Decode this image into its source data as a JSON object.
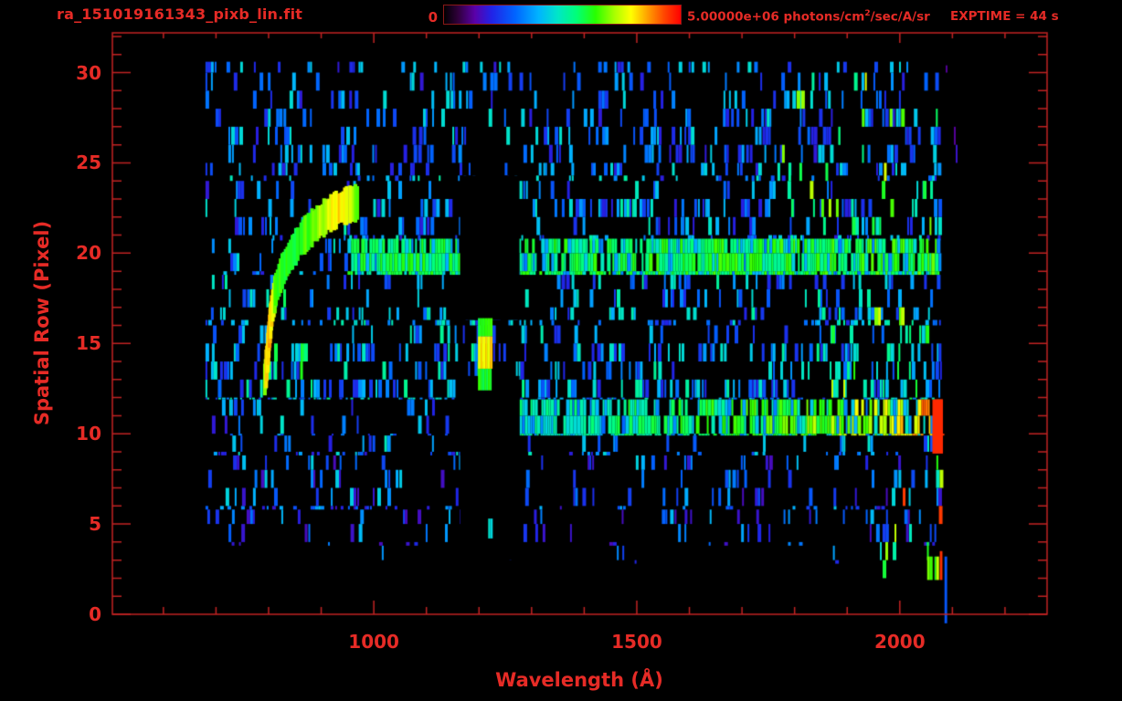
{
  "header": {
    "title": "ra_151019161343_pixb_lin.fit",
    "colorbar": {
      "min_label": "0",
      "max_label_prefix": "5.00000e+06 photons/cm",
      "max_label_sup": "2",
      "max_label_suffix": "/sec/A/sr",
      "units": "photons/cm2/sec/A/sr",
      "range": [
        0,
        5000000
      ]
    },
    "exptime_label": "EXPTIME = 44 s"
  },
  "chart_data": {
    "type": "heatmap",
    "title": "ra_151019161343_pixb_lin.fit",
    "xlabel": "Wavelength (Å)",
    "ylabel": "Spatial Row (Pixel)",
    "xlim": [
      503,
      2280
    ],
    "ylim": [
      0,
      32.2
    ],
    "x_major_ticks": [
      1000,
      1500,
      2000
    ],
    "x_minor_min": 600,
    "x_minor_max": 2200,
    "x_minor_step": 100,
    "y_major_ticks": [
      0,
      5,
      10,
      15,
      20,
      25,
      30
    ],
    "y_minor_max": 32,
    "y_minor_step": 1,
    "colorbar_range": [
      0,
      5000000
    ],
    "exptime_s": 44,
    "axis_color": "#c22323",
    "text_color": "#e62b26",
    "background_color": "#000000",
    "seed": 20151019,
    "colormap": [
      [
        0.0,
        "#000000"
      ],
      [
        0.06,
        "#30003c"
      ],
      [
        0.13,
        "#5a00a8"
      ],
      [
        0.2,
        "#2222e6"
      ],
      [
        0.3,
        "#0064ff"
      ],
      [
        0.4,
        "#00b4ff"
      ],
      [
        0.48,
        "#00e6c8"
      ],
      [
        0.56,
        "#00ff78"
      ],
      [
        0.64,
        "#28ff00"
      ],
      [
        0.72,
        "#a8ff00"
      ],
      [
        0.79,
        "#ffff00"
      ],
      [
        0.86,
        "#ffa000"
      ],
      [
        0.93,
        "#ff4600"
      ],
      [
        1.0,
        "#ff0000"
      ]
    ],
    "data_wavelength_extent": [
      680,
      2080
    ],
    "data_row_extent": [
      0,
      30.6
    ],
    "features": {
      "noise_regions": [
        {
          "rows": [
            24.3,
            30.6
          ],
          "wl": [
            680,
            2078
          ],
          "density": 0.3,
          "v": [
            0.18,
            0.48
          ]
        },
        {
          "rows": [
            20.7,
            24.3
          ],
          "wl": [
            680,
            2078
          ],
          "density": 0.34,
          "v": [
            0.18,
            0.52
          ]
        },
        {
          "rows": [
            18.8,
            20.8
          ],
          "wl": [
            680,
            950
          ],
          "density": 0.3,
          "v": [
            0.18,
            0.5
          ]
        },
        {
          "rows": [
            16.3,
            18.8
          ],
          "wl": [
            680,
            2078
          ],
          "density": 0.38,
          "v": [
            0.2,
            0.53
          ]
        },
        {
          "rows": [
            11.9,
            16.3
          ],
          "wl": [
            680,
            2078
          ],
          "density": 0.42,
          "v": [
            0.2,
            0.55
          ]
        },
        {
          "rows": [
            9.9,
            11.9
          ],
          "wl": [
            680,
            1277
          ],
          "density": 0.34,
          "v": [
            0.18,
            0.5
          ]
        },
        {
          "rows": [
            8.8,
            9.9
          ],
          "wl": [
            680,
            2078
          ],
          "density": 0.32,
          "v": [
            0.18,
            0.5
          ]
        },
        {
          "rows": [
            5.8,
            8.8
          ],
          "wl": [
            680,
            2078
          ],
          "density": 0.26,
          "v": [
            0.15,
            0.45
          ]
        },
        {
          "rows": [
            3.8,
            5.8
          ],
          "wl": [
            680,
            2078
          ],
          "density": 0.14,
          "v": [
            0.15,
            0.42
          ]
        },
        {
          "rows": [
            2.8,
            3.8
          ],
          "wl": [
            900,
            1900
          ],
          "density": 0.04,
          "v": [
            0.2,
            0.4
          ]
        },
        {
          "rows": [
            13.0,
            18.0
          ],
          "wl": [
            800,
            868
          ],
          "density": 0.28,
          "v": [
            0.45,
            0.65
          ]
        },
        {
          "rows": [
            2.0,
            8.8
          ],
          "wl": [
            1950,
            2078
          ],
          "density": 0.18,
          "v": [
            0.45,
            0.8
          ],
          "red_chance": 0.05
        },
        {
          "rows": [
            11.9,
            17.0
          ],
          "wl": [
            1870,
            2078
          ],
          "density": 0.15,
          "v": [
            0.45,
            0.8
          ],
          "red_chance": 0.04
        },
        {
          "rows": [
            20.7,
            30.6
          ],
          "wl": [
            1750,
            2078
          ],
          "density": 0.13,
          "v": [
            0.45,
            0.8
          ],
          "red_chance": 0.04
        },
        {
          "rows": [
            24.0,
            30.4
          ],
          "wl": [
            2082,
            2108
          ],
          "density": 0.07,
          "v": [
            0.1,
            0.18
          ]
        },
        {
          "rows": [
            0.0,
            3.0
          ],
          "wl": [
            2082,
            2100
          ],
          "density": 0.06,
          "v": [
            0.1,
            0.18
          ]
        }
      ],
      "spectra_bands": [
        {
          "name": "upper-spectrum-row-19-20",
          "rows": [
            18.8,
            20.8
          ],
          "wl": [
            950,
            2078
          ],
          "density": 0.85,
          "low_mix": 0.25,
          "low_v": [
            0.32,
            0.5
          ],
          "ramp": [
            [
              950,
              0.5,
              0.64
            ],
            [
              1500,
              0.52,
              0.66
            ],
            [
              2000,
              0.52,
              0.68
            ],
            [
              2078,
              0.55,
              0.7
            ]
          ]
        },
        {
          "name": "lower-spectrum-row-10-11",
          "rows": [
            9.9,
            11.9
          ],
          "wl": [
            1277,
            2078
          ],
          "density": 0.82,
          "low_mix": 0.28,
          "low_v": [
            0.3,
            0.5
          ],
          "ramp": [
            [
              1277,
              0.42,
              0.58
            ],
            [
              1500,
              0.48,
              0.62
            ],
            [
              1760,
              0.55,
              0.7
            ],
            [
              1900,
              0.62,
              0.78
            ],
            [
              2010,
              0.72,
              0.86
            ],
            [
              2060,
              0.8,
              0.95
            ],
            [
              2078,
              0.88,
              1.0
            ]
          ]
        }
      ],
      "absorption_gaps": [
        {
          "name": "lyman-alpha-gap-upper",
          "rows": [
            16.3,
            24.3
          ],
          "wl": [
            1164,
            1277
          ]
        },
        {
          "name": "lyman-alpha-gap-lower",
          "rows": [
            3.0,
            13.2
          ],
          "wl": [
            1164,
            1277
          ]
        }
      ],
      "lyman_alpha_line": {
        "wl": [
          1198,
          1224
        ],
        "segments": [
          [
            12.4,
            13.6,
            0.6
          ],
          [
            13.6,
            15.4,
            0.8
          ],
          [
            15.4,
            16.4,
            0.62
          ]
        ]
      },
      "arc": {
        "thickness_rows": 1.9,
        "strip_w": 4,
        "points": [
          [
            793,
            13.0,
            0.72
          ],
          [
            798,
            14.2,
            0.82
          ],
          [
            801,
            15.4,
            0.86
          ],
          [
            806,
            16.8,
            0.8
          ],
          [
            814,
            18.0,
            0.68
          ],
          [
            826,
            19.0,
            0.62
          ],
          [
            842,
            19.9,
            0.6
          ],
          [
            862,
            20.8,
            0.64
          ],
          [
            886,
            21.5,
            0.68
          ],
          [
            912,
            22.1,
            0.74
          ],
          [
            935,
            22.5,
            0.82
          ],
          [
            955,
            22.7,
            0.76
          ],
          [
            972,
            22.8,
            0.66
          ]
        ]
      },
      "extras": [
        {
          "name": "red-terminal-spike",
          "type": "rect",
          "wl": [
            2062,
            2082
          ],
          "rows": [
            8.9,
            11.9
          ],
          "v": 0.96
        },
        {
          "name": "green-block-bottom-right",
          "type": "strips",
          "wl": [
            2052,
            2073
          ],
          "rows": [
            1.9,
            3.2
          ],
          "v": [
            0.58,
            0.78
          ],
          "density": 0.8
        },
        {
          "name": "red-strip-bottom-right",
          "type": "rect",
          "wl": [
            2076,
            2081
          ],
          "rows": [
            1.9,
            3.5
          ],
          "v": 0.95
        },
        {
          "name": "blue-line-crossing-axis",
          "type": "rect",
          "wl": [
            2085,
            2090
          ],
          "rows": [
            -0.5,
            3.2
          ],
          "v": 0.28
        },
        {
          "name": "cyan-pair-below-gap",
          "type": "strips",
          "wl": [
            1207,
            1222
          ],
          "rows": [
            4.2,
            5.3
          ],
          "v": [
            0.4,
            0.52
          ],
          "density": 0.55
        }
      ]
    }
  }
}
